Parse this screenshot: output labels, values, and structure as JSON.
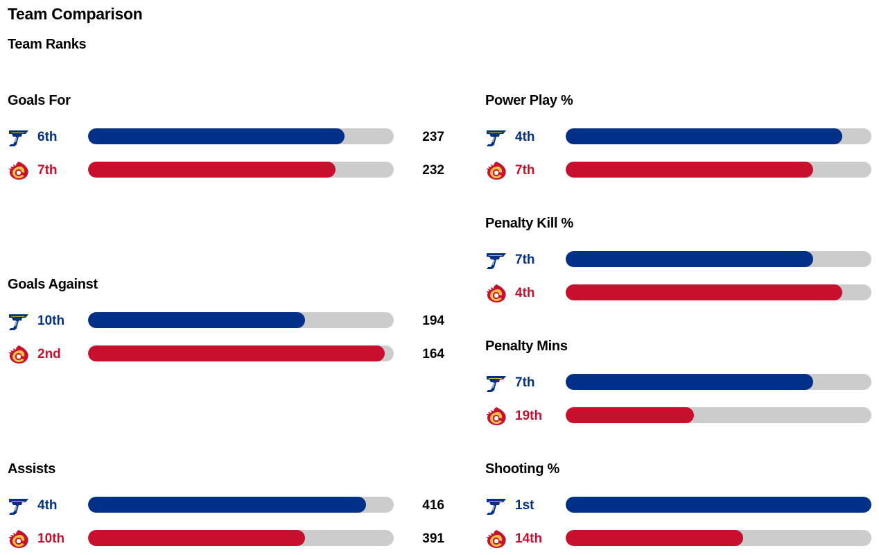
{
  "page": {
    "title": "Team Comparison",
    "subtitle": "Team Ranks"
  },
  "colors": {
    "blues": "#003087",
    "flames": "#c8102e",
    "track": "#cccccc"
  },
  "teams": {
    "blues": {
      "icon": "st-louis-blues-logo-icon"
    },
    "flames": {
      "icon": "calgary-flames-logo-icon"
    }
  },
  "stats": [
    {
      "title": "Goals For",
      "rows": [
        {
          "team": "blues",
          "rank": "6th",
          "fill": 0.84,
          "value": "237"
        },
        {
          "team": "flames",
          "rank": "7th",
          "fill": 0.81,
          "value": "232"
        }
      ]
    },
    {
      "title": "Goals Against",
      "rows": [
        {
          "team": "blues",
          "rank": "10th",
          "fill": 0.71,
          "value": "194"
        },
        {
          "team": "flames",
          "rank": "2nd",
          "fill": 0.97,
          "value": "164"
        }
      ]
    },
    {
      "title": "Assists",
      "rows": [
        {
          "team": "blues",
          "rank": "4th",
          "fill": 0.91,
          "value": "416"
        },
        {
          "team": "flames",
          "rank": "10th",
          "fill": 0.71,
          "value": "391"
        }
      ]
    },
    {
      "title": "Power Play %",
      "rows": [
        {
          "team": "blues",
          "rank": "4th",
          "fill": 0.905
        },
        {
          "team": "flames",
          "rank": "7th",
          "fill": 0.81
        }
      ]
    },
    {
      "title": "Penalty Kill %",
      "rows": [
        {
          "team": "blues",
          "rank": "7th",
          "fill": 0.81
        },
        {
          "team": "flames",
          "rank": "4th",
          "fill": 0.905
        }
      ]
    },
    {
      "title": "Penalty Mins",
      "rows": [
        {
          "team": "blues",
          "rank": "7th",
          "fill": 0.81
        },
        {
          "team": "flames",
          "rank": "19th",
          "fill": 0.42
        }
      ]
    },
    {
      "title": "Shooting %",
      "rows": [
        {
          "team": "blues",
          "rank": "1st",
          "fill": 1.0
        },
        {
          "team": "flames",
          "rank": "14th",
          "fill": 0.58
        }
      ]
    }
  ]
}
